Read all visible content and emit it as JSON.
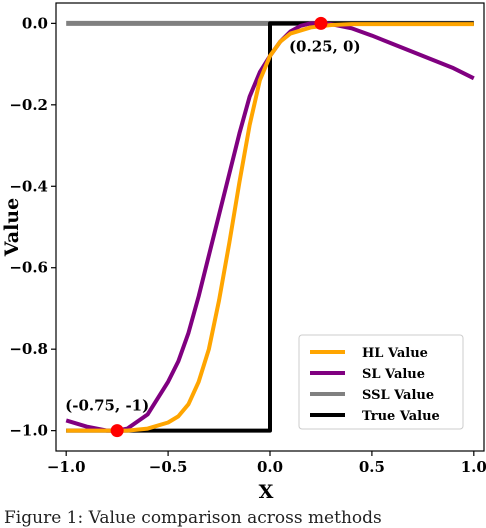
{
  "chart_data": {
    "type": "line",
    "title": "",
    "xlabel": "X",
    "ylabel": "Value",
    "xlim": [
      -1.05,
      1.05
    ],
    "ylim": [
      -1.05,
      0.05
    ],
    "xticks": [
      -1.0,
      -0.5,
      0.0,
      0.5,
      1.0
    ],
    "xtick_labels": [
      "−1.0",
      "−0.5",
      "0.0",
      "0.5",
      "1.0"
    ],
    "yticks": [
      0.0,
      -0.2,
      -0.4,
      -0.6,
      -0.8,
      -1.0
    ],
    "ytick_labels": [
      "0.0",
      "−0.2",
      "−0.4",
      "−0.6",
      "−0.8",
      "−1.0"
    ],
    "grid": false,
    "legend_position": "bottom-right",
    "series": [
      {
        "name": "HL Value",
        "color": "#FFA500",
        "x": [
          -1.0,
          -0.9,
          -0.8,
          -0.75,
          -0.7,
          -0.6,
          -0.5,
          -0.45,
          -0.4,
          -0.35,
          -0.3,
          -0.25,
          -0.2,
          -0.15,
          -0.1,
          -0.05,
          0.0,
          0.05,
          0.1,
          0.2,
          0.3,
          0.4,
          0.5,
          0.6,
          0.8,
          1.0
        ],
        "y": [
          -1.0,
          -1.0,
          -1.0,
          -1.0,
          -1.0,
          -0.995,
          -0.98,
          -0.965,
          -0.935,
          -0.88,
          -0.8,
          -0.68,
          -0.54,
          -0.39,
          -0.25,
          -0.14,
          -0.08,
          -0.045,
          -0.025,
          -0.01,
          -0.004,
          -0.002,
          -0.002,
          -0.002,
          -0.002,
          -0.002
        ]
      },
      {
        "name": "SL Value",
        "color": "#800080",
        "x": [
          -1.0,
          -0.9,
          -0.8,
          -0.75,
          -0.7,
          -0.6,
          -0.5,
          -0.45,
          -0.4,
          -0.35,
          -0.3,
          -0.25,
          -0.2,
          -0.15,
          -0.1,
          -0.05,
          0.0,
          0.05,
          0.1,
          0.15,
          0.2,
          0.25,
          0.3,
          0.4,
          0.5,
          0.6,
          0.7,
          0.8,
          0.9,
          1.0
        ],
        "y": [
          -0.975,
          -0.99,
          -1.0,
          -1.0,
          -0.995,
          -0.96,
          -0.88,
          -0.83,
          -0.76,
          -0.67,
          -0.57,
          -0.47,
          -0.37,
          -0.27,
          -0.18,
          -0.12,
          -0.08,
          -0.045,
          -0.02,
          -0.006,
          0.0,
          0.0,
          -0.002,
          -0.012,
          -0.03,
          -0.05,
          -0.07,
          -0.09,
          -0.11,
          -0.135
        ]
      },
      {
        "name": "SSL Value",
        "color": "#808080",
        "x": [
          -1.0,
          1.0
        ],
        "y": [
          0.0,
          0.0
        ]
      },
      {
        "name": "True Value",
        "color": "#000000",
        "x": [
          -1.0,
          0.0,
          0.0,
          1.0
        ],
        "y": [
          -1.0,
          -1.0,
          0.0,
          0.0
        ]
      }
    ],
    "points": [
      {
        "x": -0.75,
        "y": -1.0,
        "label": "(-0.75, -1)",
        "color": "#FF0000"
      },
      {
        "x": 0.25,
        "y": 0.0,
        "label": "(0.25, 0)",
        "color": "#FF0000"
      }
    ],
    "caption": "Figure 1: Value comparison across methods"
  }
}
